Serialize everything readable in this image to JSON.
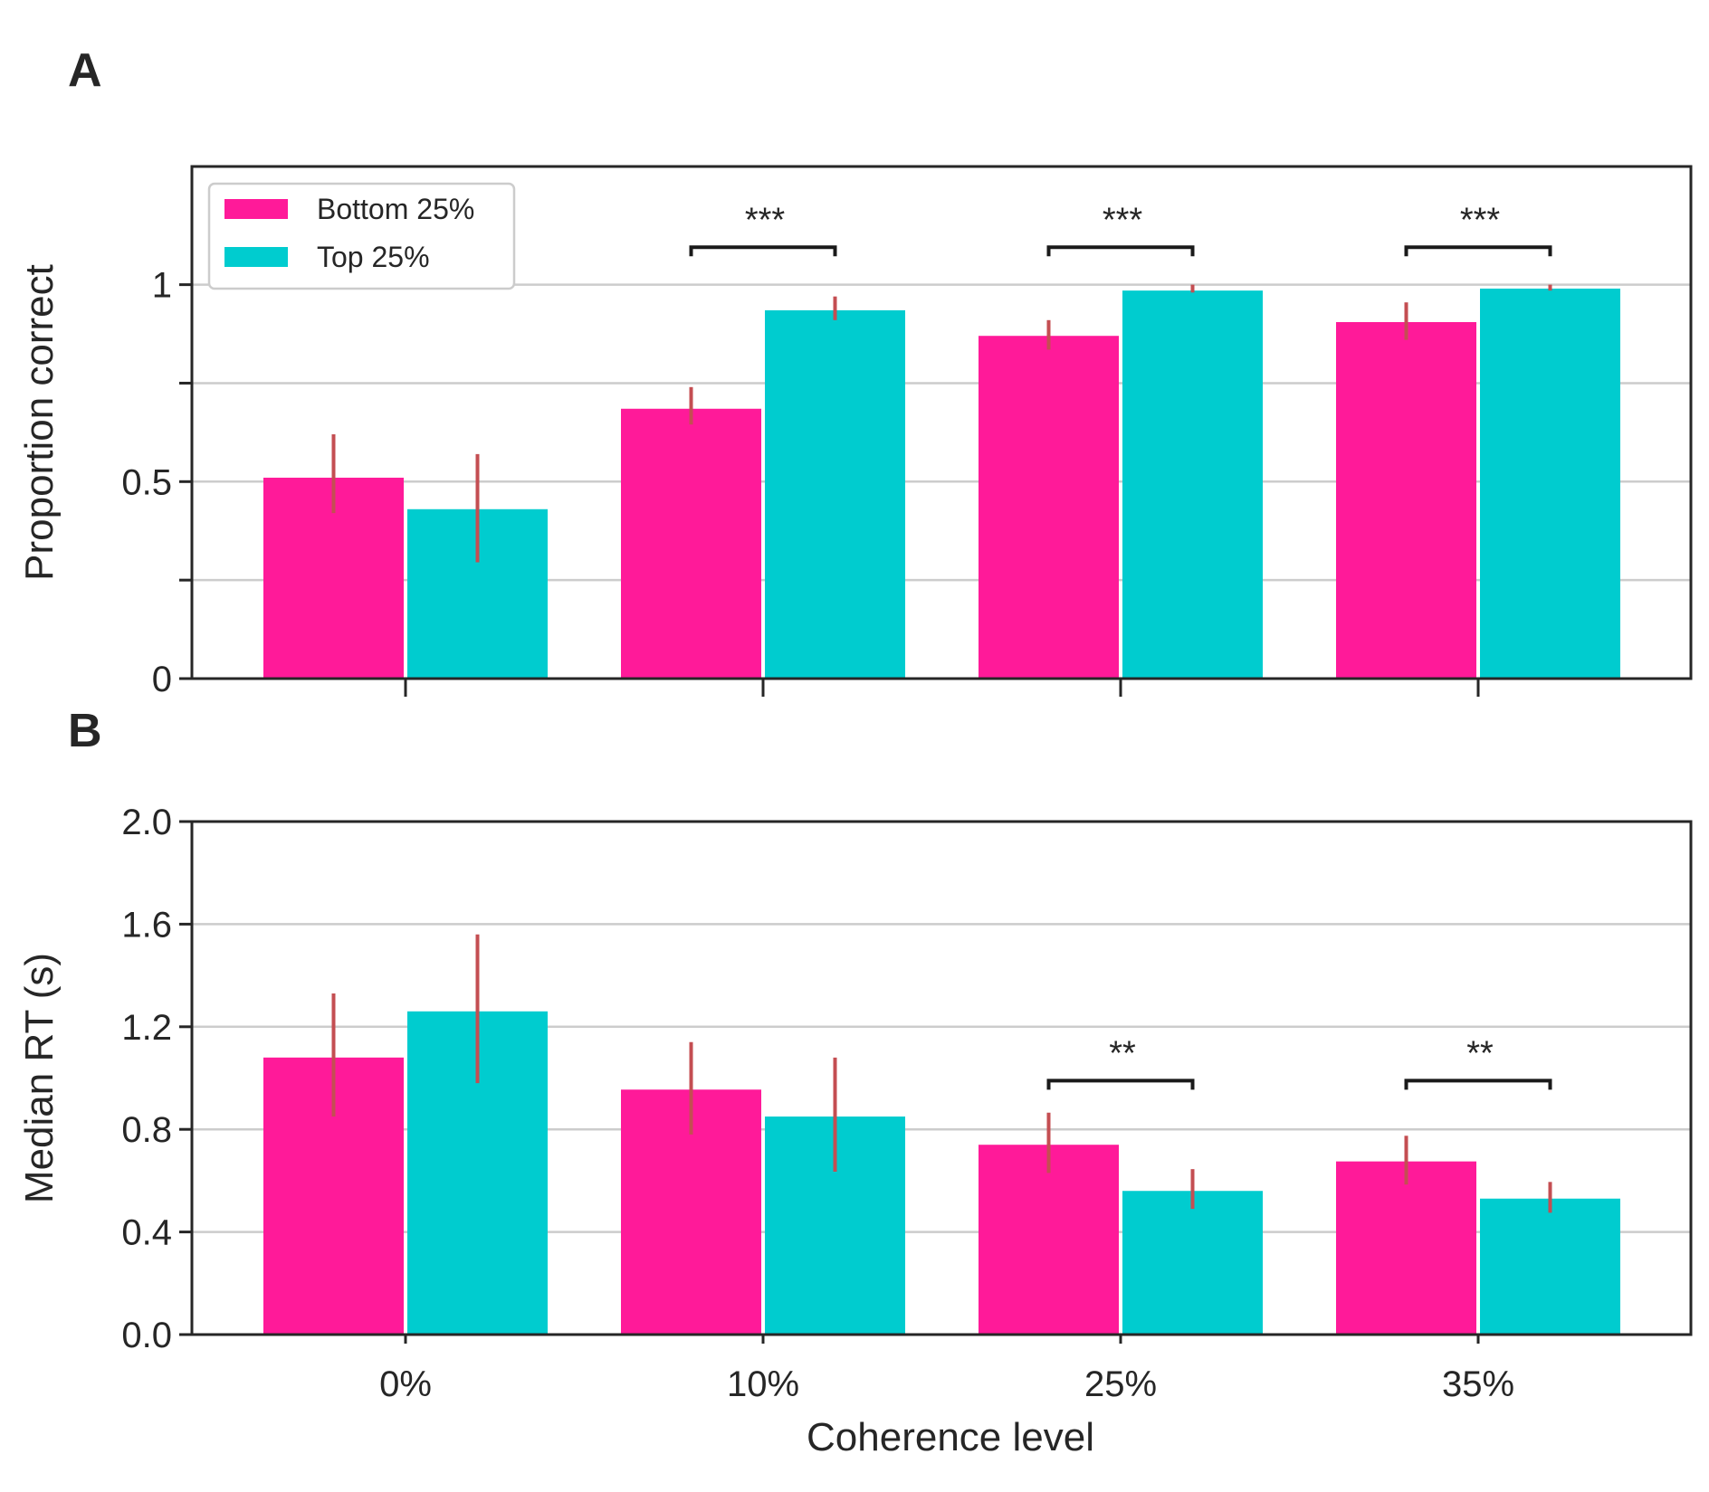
{
  "chart_data": [
    {
      "type": "bar",
      "panel_label": "A",
      "ylabel": "Proportion correct",
      "ylim": [
        0,
        1.3
      ],
      "yticks": [
        0,
        0.25,
        0.5,
        0.75,
        1.0
      ],
      "ytick_labels": [
        "0",
        "",
        "0.5",
        "",
        "1"
      ],
      "grid": true,
      "categories": [
        "0%",
        "10%",
        "25%",
        "35%"
      ],
      "show_xtick_labels": false,
      "series": [
        {
          "name": "Bottom 25%",
          "color": "#ff1a99",
          "values": [
            0.51,
            0.685,
            0.87,
            0.905
          ],
          "errors": [
            [
              0.42,
              0.62
            ],
            [
              0.645,
              0.74
            ],
            [
              0.835,
              0.91
            ],
            [
              0.86,
              0.955
            ]
          ]
        },
        {
          "name": "Top 25%",
          "color": "#00cccf",
          "values": [
            0.43,
            0.935,
            0.985,
            0.99
          ],
          "errors": [
            [
              0.295,
              0.57
            ],
            [
              0.91,
              0.97
            ],
            [
              0.98,
              1.0
            ],
            [
              0.985,
              1.0
            ]
          ]
        }
      ],
      "significance": [
        {
          "category": 1,
          "label": "***",
          "y": 1.095
        },
        {
          "category": 2,
          "label": "***",
          "y": 1.095
        },
        {
          "category": 3,
          "label": "***",
          "y": 1.095
        }
      ],
      "legend": {
        "position": "top-left"
      }
    },
    {
      "type": "bar",
      "panel_label": "B",
      "ylabel": "Median RT (s)",
      "xlabel": "Coherence level",
      "ylim": [
        0,
        2.0
      ],
      "yticks": [
        0.0,
        0.4,
        0.8,
        1.2,
        1.6,
        2.0
      ],
      "ytick_labels": [
        "0.0",
        "0.4",
        "0.8",
        "1.2",
        "1.6",
        "2.0"
      ],
      "grid": true,
      "categories": [
        "0%",
        "10%",
        "25%",
        "35%"
      ],
      "show_xtick_labels": true,
      "series": [
        {
          "name": "Bottom 25%",
          "color": "#ff1a99",
          "values": [
            1.08,
            0.955,
            0.74,
            0.675
          ],
          "errors": [
            [
              0.85,
              1.33
            ],
            [
              0.78,
              1.14
            ],
            [
              0.63,
              0.865
            ],
            [
              0.585,
              0.775
            ]
          ]
        },
        {
          "name": "Top 25%",
          "color": "#00cccf",
          "values": [
            1.26,
            0.85,
            0.56,
            0.53
          ],
          "errors": [
            [
              0.98,
              1.56
            ],
            [
              0.635,
              1.08
            ],
            [
              0.49,
              0.645
            ],
            [
              0.475,
              0.595
            ]
          ]
        }
      ],
      "significance": [
        {
          "category": 2,
          "label": "**",
          "y": 0.99
        },
        {
          "category": 3,
          "label": "**",
          "y": 0.99
        }
      ]
    }
  ]
}
